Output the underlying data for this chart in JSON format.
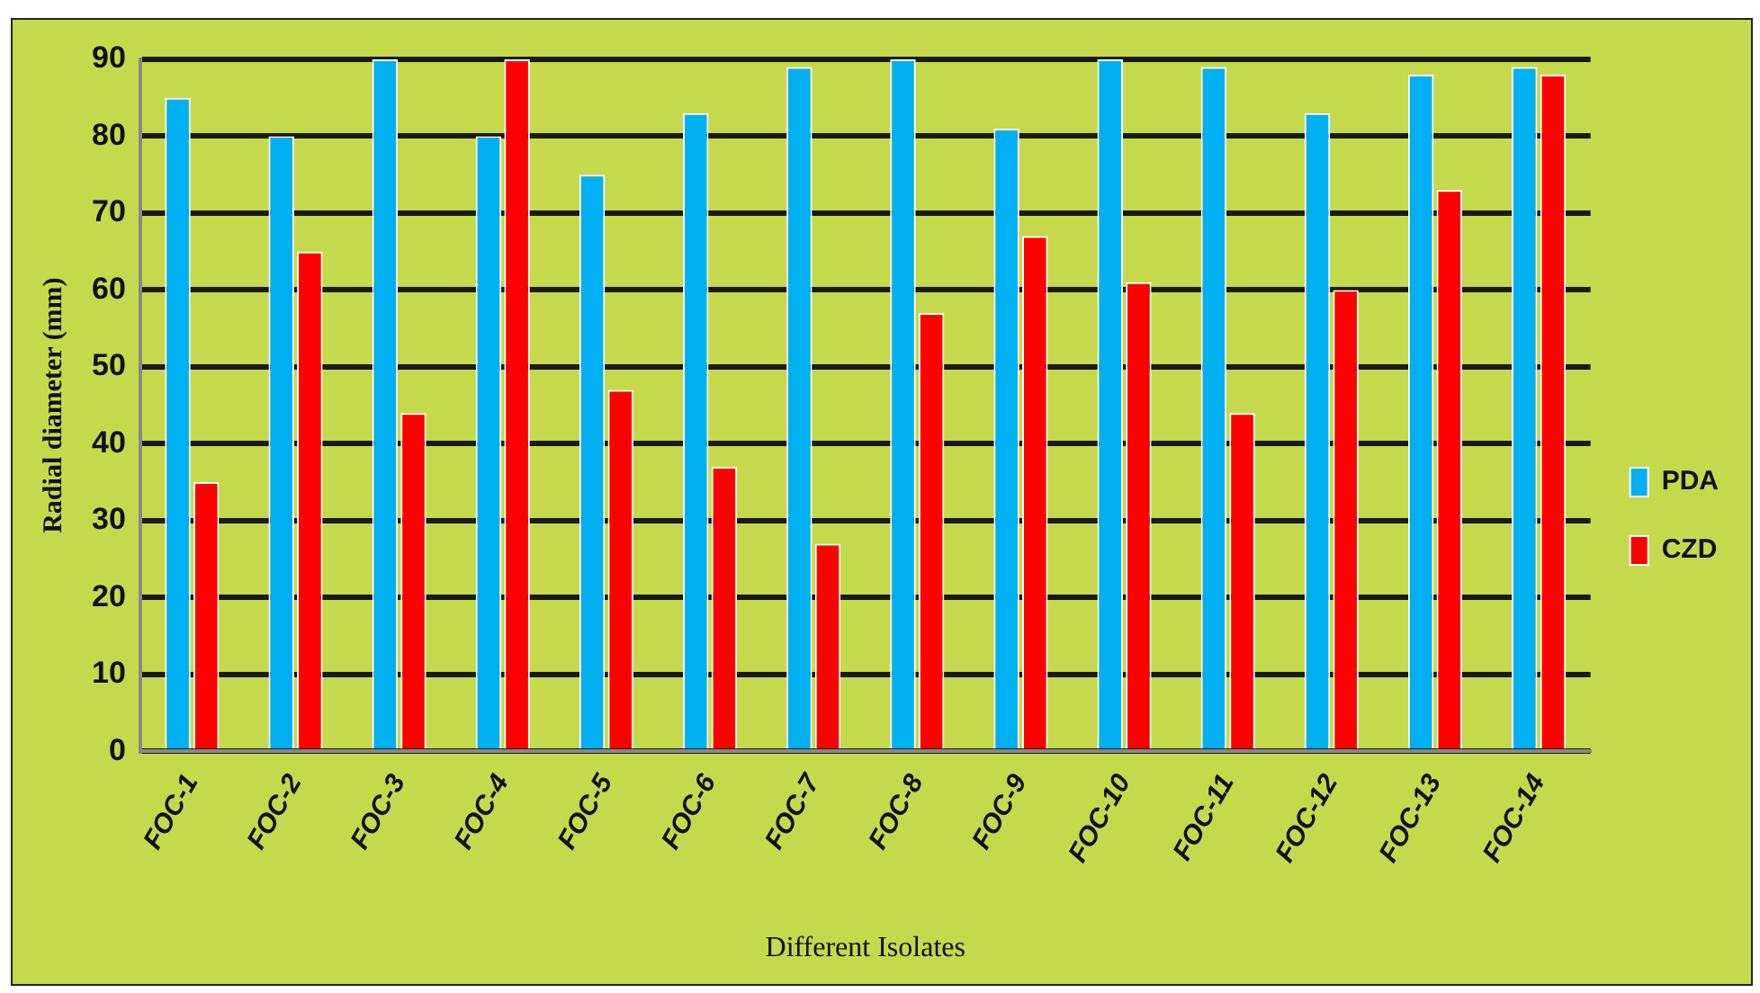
{
  "chart_data": {
    "type": "bar",
    "xlabel": "Different Isolates",
    "ylabel": "Radial diameter (mm)",
    "categories": [
      "FOC-1",
      "FOC-2",
      "FOC-3",
      "FOC-4",
      "FOC-5",
      "FOC-6",
      "FOC-7",
      "FOC-8",
      "FOC-9",
      "FOC-10",
      "FOC-11",
      "FOC-12",
      "FOC-13",
      "FOC-14"
    ],
    "series": [
      {
        "name": "PDA",
        "color": "#00b0f0",
        "values": [
          85,
          80,
          90,
          80,
          75,
          83,
          89,
          90,
          81,
          90,
          89,
          83,
          88,
          89
        ]
      },
      {
        "name": "CZD",
        "color": "#ff0000",
        "values": [
          35,
          65,
          44,
          90,
          47,
          37,
          27,
          57,
          67,
          61,
          44,
          60,
          73,
          88
        ]
      }
    ],
    "ylim": [
      0,
      90
    ],
    "yticks": [
      0,
      10,
      20,
      30,
      40,
      50,
      60,
      70,
      80,
      90
    ],
    "grid": "y",
    "legend": "right"
  }
}
